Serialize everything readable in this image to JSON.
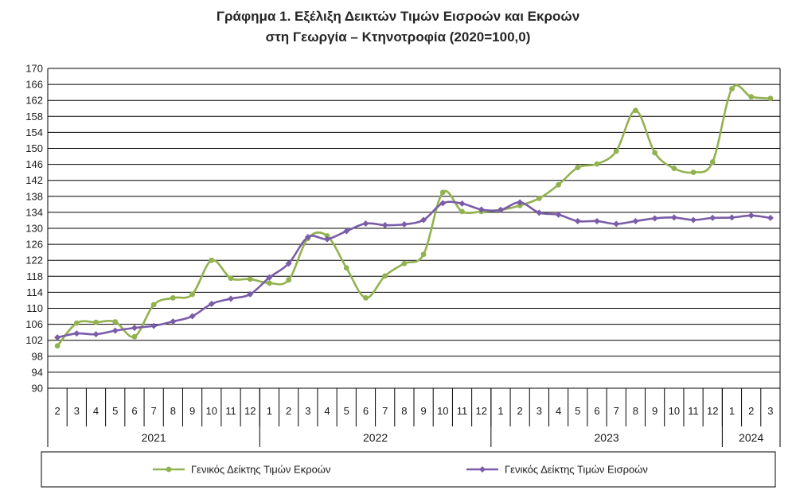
{
  "title_line1": "Γράφημα 1. Εξέλιξη Δεικτών Τιμών Εισροών και Εκροών",
  "title_line2": "στη Γεωργία – Κτηνοτροφία (2020=100,0)",
  "chart_data": {
    "type": "line",
    "title": "Γράφημα 1. Εξέλιξη Δεικτών Τιμών Εισροών και Εκροών στη Γεωργία – Κτηνοτροφία (2020=100,0)",
    "ylim": [
      90,
      170
    ],
    "yticks": [
      90,
      94,
      98,
      102,
      106,
      110,
      114,
      118,
      122,
      126,
      130,
      134,
      138,
      142,
      146,
      150,
      154,
      158,
      162,
      166,
      170
    ],
    "grid": true,
    "legend_position": "bottom",
    "categories": [
      "2",
      "3",
      "4",
      "5",
      "6",
      "7",
      "8",
      "9",
      "10",
      "11",
      "12",
      "1",
      "2",
      "3",
      "4",
      "5",
      "6",
      "7",
      "8",
      "9",
      "10",
      "11",
      "12",
      "1",
      "2",
      "3",
      "4",
      "5",
      "6",
      "7",
      "8",
      "9",
      "10",
      "11",
      "12",
      "1",
      "2",
      "3"
    ],
    "years": [
      {
        "label": "2021",
        "count": 11
      },
      {
        "label": "2022",
        "count": 12
      },
      {
        "label": "2023",
        "count": 12
      },
      {
        "label": "2024",
        "count": 3
      }
    ],
    "series": [
      {
        "name": "Γενικός Δείκτης Τιμών Εκροών",
        "color": "#92b24f",
        "values": [
          100.6,
          106.3,
          106.5,
          106.6,
          102.9,
          110.9,
          112.6,
          113.5,
          122.0,
          117.5,
          117.3,
          116.3,
          117.1,
          127.5,
          128.1,
          120.1,
          112.6,
          118.1,
          121.2,
          123.5,
          139.0,
          134.2,
          134.2,
          134.6,
          135.7,
          137.5,
          140.9,
          145.2,
          146.1,
          149.3,
          159.5,
          148.9,
          145.0,
          144.0,
          146.6,
          164.9,
          162.9,
          162.5
        ]
      },
      {
        "name": "Γενικός Δείκτης Τιμών Εισροών",
        "color": "#7a5ca8",
        "values": [
          102.7,
          103.7,
          103.5,
          104.4,
          105.1,
          105.6,
          106.7,
          108.0,
          111.1,
          112.4,
          113.5,
          117.7,
          121.2,
          127.8,
          127.3,
          129.3,
          131.2,
          130.8,
          131.0,
          132.1,
          136.3,
          136.2,
          134.7,
          134.6,
          136.5,
          133.9,
          133.4,
          131.8,
          131.8,
          131.1,
          131.8,
          132.5,
          132.7,
          132.1,
          132.6,
          132.7,
          133.2,
          132.6
        ]
      }
    ]
  }
}
